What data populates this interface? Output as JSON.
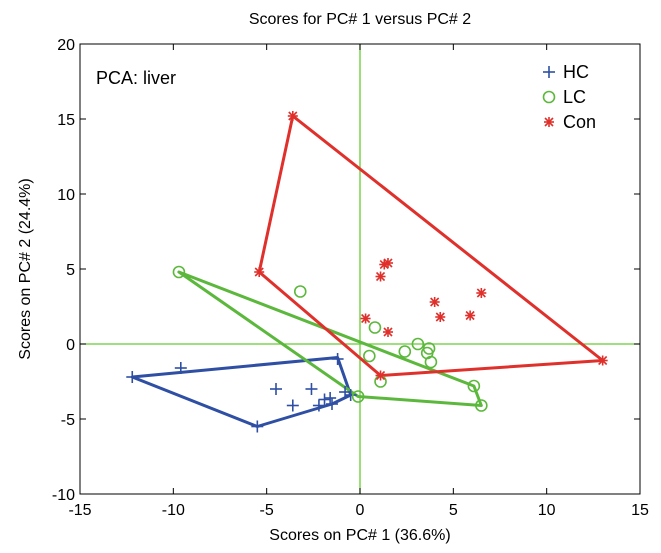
{
  "chart_data": {
    "type": "scatter",
    "title": "Scores for PC# 1 versus PC# 2",
    "xlabel": "Scores on PC# 1 (36.6%)",
    "ylabel": "Scores on PC# 2 (24.4%)",
    "annotation": "PCA: liver",
    "xlim": [
      -15,
      15
    ],
    "ylim": [
      -10,
      20
    ],
    "xticks": [
      -15,
      -10,
      -5,
      0,
      5,
      10,
      15
    ],
    "yticks": [
      -10,
      -5,
      0,
      5,
      10,
      15,
      20
    ],
    "grid": false,
    "legend_position": "top-right",
    "reference_lines": {
      "x": 0,
      "y": 0,
      "color": "#66cc33"
    },
    "series": [
      {
        "name": "HC",
        "marker": "plus",
        "color": "#2e4fa3",
        "points": [
          [
            -12.2,
            -2.2
          ],
          [
            -9.6,
            -1.6
          ],
          [
            -5.5,
            -5.5
          ],
          [
            -4.5,
            -3.0
          ],
          [
            -3.6,
            -4.1
          ],
          [
            -2.6,
            -3.0
          ],
          [
            -2.2,
            -4.1
          ],
          [
            -1.9,
            -3.7
          ],
          [
            -1.6,
            -3.6
          ],
          [
            -1.5,
            -4.0
          ],
          [
            -1.2,
            -1.0
          ],
          [
            -0.8,
            -3.2
          ],
          [
            -0.5,
            -3.4
          ]
        ],
        "hull": [
          [
            -12.2,
            -2.2
          ],
          [
            -1.2,
            -0.9
          ],
          [
            -0.5,
            -3.4
          ],
          [
            -1.5,
            -4.0
          ],
          [
            -5.5,
            -5.5
          ]
        ]
      },
      {
        "name": "LC",
        "marker": "circle",
        "color": "#5cb83c",
        "points": [
          [
            -9.7,
            4.8
          ],
          [
            -3.2,
            3.5
          ],
          [
            -0.1,
            -3.5
          ],
          [
            0.5,
            -0.8
          ],
          [
            0.8,
            1.1
          ],
          [
            1.1,
            -2.5
          ],
          [
            2.4,
            -0.5
          ],
          [
            3.1,
            0.0
          ],
          [
            3.6,
            -0.6
          ],
          [
            3.7,
            -0.3
          ],
          [
            3.8,
            -1.2
          ],
          [
            6.1,
            -2.8
          ],
          [
            6.5,
            -4.1
          ]
        ],
        "hull": [
          [
            -9.7,
            4.8
          ],
          [
            6.1,
            -2.8
          ],
          [
            6.5,
            -4.1
          ],
          [
            -0.1,
            -3.5
          ]
        ]
      },
      {
        "name": "Con",
        "marker": "star",
        "color": "#e0302b",
        "points": [
          [
            -3.6,
            15.2
          ],
          [
            -5.4,
            4.8
          ],
          [
            0.3,
            1.7
          ],
          [
            1.1,
            4.5
          ],
          [
            1.3,
            5.3
          ],
          [
            1.5,
            5.4
          ],
          [
            1.5,
            0.8
          ],
          [
            4.0,
            2.8
          ],
          [
            4.3,
            1.8
          ],
          [
            5.9,
            1.9
          ],
          [
            6.5,
            3.4
          ],
          [
            13.0,
            -1.1
          ],
          [
            1.1,
            -2.1
          ]
        ],
        "hull": [
          [
            -3.6,
            15.2
          ],
          [
            13.0,
            -1.1
          ],
          [
            1.1,
            -2.1
          ],
          [
            -5.4,
            4.8
          ]
        ]
      }
    ]
  }
}
